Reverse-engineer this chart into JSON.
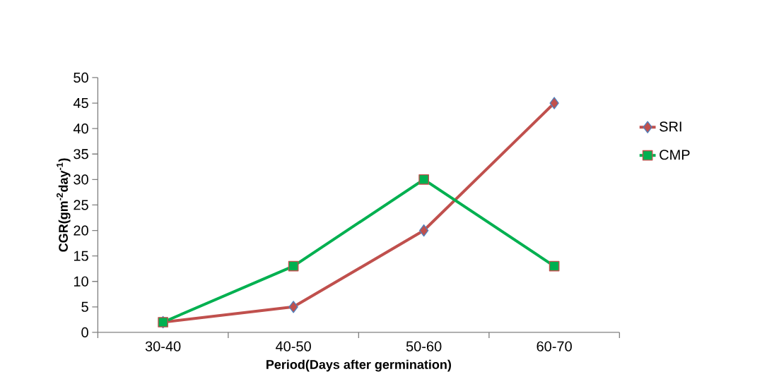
{
  "chart_data": {
    "type": "line",
    "xlabel": "Period(Days after germination)",
    "ylabel": "CGR(gm$^{-2}$day$^{-1}$)",
    "categories": [
      "30-40",
      "40-50",
      "50-60",
      "60-70"
    ],
    "series": [
      {
        "name": "SRI",
        "color": "#c0504d",
        "marker": "diamond",
        "values": [
          2,
          5,
          20,
          45
        ]
      },
      {
        "name": "CMP",
        "color": "#00b050",
        "marker": "square",
        "values": [
          2,
          13,
          30,
          13
        ]
      }
    ],
    "ylim": [
      0,
      50
    ],
    "yticks": [
      0,
      5,
      10,
      15,
      20,
      25,
      30,
      35,
      40,
      45,
      50
    ],
    "grid": false,
    "legend": "right",
    "line_style": "solid"
  }
}
